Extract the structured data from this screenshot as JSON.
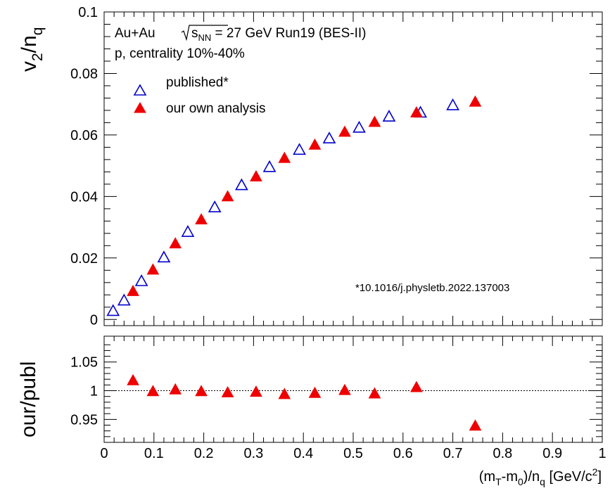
{
  "chart_data": [
    {
      "type": "scatter",
      "ylabel_main": "v",
      "ylabel_sub1": "2",
      "ylabel_mid": "/n",
      "ylabel_sub2": "q",
      "xlim": [
        0,
        1
      ],
      "ylim": [
        -0.002,
        0.1
      ],
      "y_ticks": [
        0,
        0.02,
        0.04,
        0.06,
        0.08,
        0.1
      ],
      "y_tick_labels": [
        "0",
        "0.02",
        "0.04",
        "0.06",
        "0.08",
        "0.1"
      ],
      "annotation_line1_a": "Au+Au ",
      "annotation_line1_s": "s",
      "annotation_line1_sub": "NN",
      "annotation_line1_b": " = 27 GeV Run19 (BES-II)",
      "annotation_line2": "p, centrality 10%-40%",
      "doi_note": "*10.1016/j.physletb.2022.137003",
      "legend_position": "top-left",
      "series": [
        {
          "name": "published*",
          "marker": "open-triangle",
          "color": "#0000cc",
          "x": [
            0.018,
            0.04,
            0.075,
            0.12,
            0.168,
            0.222,
            0.276,
            0.332,
            0.392,
            0.452,
            0.512,
            0.572,
            0.635,
            0.7
          ],
          "y": [
            0.0028,
            0.0062,
            0.0125,
            0.0202,
            0.0285,
            0.0365,
            0.0437,
            0.0496,
            0.0552,
            0.0589,
            0.0624,
            0.066,
            0.0673,
            0.0697
          ]
        },
        {
          "name": "our own analysis",
          "marker": "filled-triangle",
          "color": "#ee0000",
          "x": [
            0.058,
            0.098,
            0.143,
            0.195,
            0.248,
            0.305,
            0.362,
            0.423,
            0.483,
            0.543,
            0.627,
            0.745
          ],
          "y": [
            0.0092,
            0.0162,
            0.0247,
            0.0325,
            0.04,
            0.0465,
            0.0525,
            0.0568,
            0.061,
            0.0642,
            0.0673,
            0.0708
          ]
        }
      ]
    },
    {
      "type": "scatter",
      "ylabel": "our/publ",
      "xlabel_a": "(m",
      "xlabel_sub1": "T",
      "xlabel_b": "-m",
      "xlabel_sub2": "0",
      "xlabel_c": ")/n",
      "xlabel_sub3": "q",
      "xlabel_d": " [GeV/c",
      "xlabel_sup": "2",
      "xlabel_e": "]",
      "xlim": [
        0,
        1
      ],
      "ylim": [
        0.91,
        1.095
      ],
      "y_ticks": [
        0.95,
        1,
        1.05
      ],
      "y_tick_labels": [
        "0.95",
        "1",
        "1.05"
      ],
      "x_ticks": [
        0,
        0.1,
        0.2,
        0.3,
        0.4,
        0.5,
        0.6,
        0.7,
        0.8,
        0.9,
        1
      ],
      "x_tick_labels": [
        "0",
        "0.1",
        "0.2",
        "0.3",
        "0.4",
        "0.5",
        "0.6",
        "0.7",
        "0.8",
        "0.9",
        "1"
      ],
      "reference_line": 1,
      "series": [
        {
          "name": "our own analysis",
          "marker": "filled-triangle",
          "color": "#ee0000",
          "x": [
            0.058,
            0.098,
            0.143,
            0.195,
            0.248,
            0.305,
            0.362,
            0.423,
            0.483,
            0.543,
            0.627,
            0.745
          ],
          "y": [
            1.018,
            0.999,
            1.002,
            0.999,
            0.997,
            0.998,
            0.994,
            0.996,
            1.001,
            0.995,
            1.006,
            0.939
          ]
        }
      ]
    }
  ]
}
